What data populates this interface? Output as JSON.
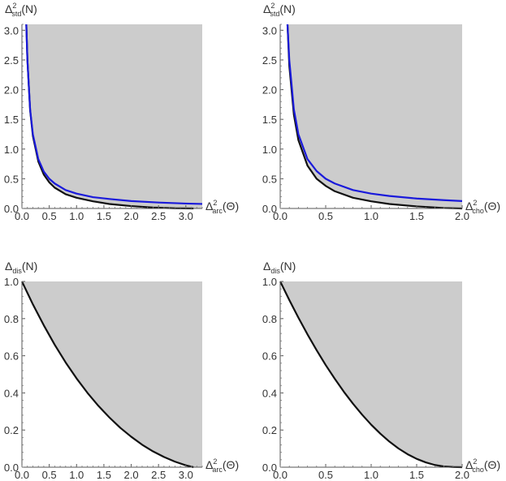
{
  "chart_data": [
    {
      "type": "area",
      "ylabel": {
        "symbol": "Δ",
        "sup": "2",
        "sub": "std",
        "suffix": "(N)"
      },
      "xlabel": {
        "symbol": "Δ",
        "sup": "2",
        "sub": "arc",
        "suffix": "(Θ)"
      },
      "xlim": [
        0,
        3.3
      ],
      "ylim": [
        0,
        3.1
      ],
      "xticks": [
        "0.0",
        "0.5",
        "1.0",
        "1.5",
        "2.0",
        "2.5",
        "3.0"
      ],
      "yticks": [
        "0.0",
        "0.5",
        "1.0",
        "1.5",
        "2.0",
        "2.5",
        "3.0"
      ],
      "region_color": "#cccccc",
      "series": [
        {
          "color": "#111111",
          "x": [
            0.08,
            0.1,
            0.15,
            0.2,
            0.3,
            0.4,
            0.5,
            0.6,
            0.8,
            1.0,
            1.3,
            1.6,
            2.0,
            2.4,
            2.8,
            3.14
          ],
          "y": [
            3.1,
            2.5,
            1.65,
            1.22,
            0.79,
            0.57,
            0.44,
            0.35,
            0.24,
            0.18,
            0.12,
            0.075,
            0.04,
            0.015,
            0.003,
            0.0
          ]
        },
        {
          "color": "#1a1adb",
          "x": [
            0.08,
            0.1,
            0.15,
            0.2,
            0.3,
            0.4,
            0.5,
            0.6,
            0.8,
            1.0,
            1.3,
            1.6,
            2.0,
            2.5,
            3.0,
            3.3
          ],
          "y": [
            3.1,
            2.5,
            1.67,
            1.25,
            0.83,
            0.62,
            0.5,
            0.42,
            0.31,
            0.25,
            0.19,
            0.16,
            0.125,
            0.1,
            0.083,
            0.076
          ]
        }
      ]
    },
    {
      "type": "area",
      "ylabel": {
        "symbol": "Δ",
        "sup": "2",
        "sub": "std",
        "suffix": "(N)"
      },
      "xlabel": {
        "symbol": "Δ",
        "sup": "2",
        "sub": "cho",
        "suffix": "(Θ)"
      },
      "xlim": [
        0,
        2.0
      ],
      "ylim": [
        0,
        3.1
      ],
      "xticks": [
        "0.0",
        "0.5",
        "1.0",
        "1.5",
        "2.0"
      ],
      "yticks": [
        "0.0",
        "0.5",
        "1.0",
        "1.5",
        "2.0",
        "2.5",
        "3.0"
      ],
      "region_color": "#cccccc",
      "series": [
        {
          "color": "#111111",
          "x": [
            0.08,
            0.1,
            0.15,
            0.2,
            0.3,
            0.4,
            0.5,
            0.6,
            0.8,
            1.0,
            1.2,
            1.5,
            1.8,
            2.0
          ],
          "y": [
            3.1,
            2.4,
            1.58,
            1.15,
            0.72,
            0.5,
            0.38,
            0.29,
            0.18,
            0.12,
            0.075,
            0.035,
            0.008,
            0.0
          ]
        },
        {
          "color": "#1a1adb",
          "x": [
            0.08,
            0.1,
            0.15,
            0.2,
            0.3,
            0.4,
            0.5,
            0.6,
            0.8,
            1.0,
            1.2,
            1.5,
            1.8,
            2.0
          ],
          "y": [
            3.1,
            2.5,
            1.67,
            1.25,
            0.83,
            0.63,
            0.5,
            0.42,
            0.31,
            0.25,
            0.21,
            0.167,
            0.14,
            0.125
          ]
        }
      ]
    },
    {
      "type": "area",
      "ylabel": {
        "symbol": "Δ",
        "sup": "",
        "sub": "dis",
        "suffix": "(N)"
      },
      "xlabel": {
        "symbol": "Δ",
        "sup": "2",
        "sub": "arc",
        "suffix": "(Θ)"
      },
      "xlim": [
        0,
        3.3
      ],
      "ylim": [
        0,
        1.0
      ],
      "xticks": [
        "0.0",
        "0.5",
        "1.0",
        "1.5",
        "2.0",
        "2.5",
        "3.0"
      ],
      "yticks": [
        "0.0",
        "0.2",
        "0.4",
        "0.6",
        "0.8",
        "1.0"
      ],
      "region_color": "#cccccc",
      "series": [
        {
          "color": "#111111",
          "x": [
            0.0,
            0.2,
            0.4,
            0.6,
            0.8,
            1.0,
            1.2,
            1.4,
            1.6,
            1.8,
            2.0,
            2.2,
            2.4,
            2.6,
            2.8,
            3.0,
            3.14
          ],
          "y": [
            1.0,
            0.877,
            0.764,
            0.659,
            0.564,
            0.478,
            0.4,
            0.33,
            0.268,
            0.212,
            0.164,
            0.121,
            0.085,
            0.055,
            0.03,
            0.01,
            0.0
          ]
        }
      ]
    },
    {
      "type": "area",
      "ylabel": {
        "symbol": "Δ",
        "sup": "",
        "sub": "dis",
        "suffix": "(N)"
      },
      "xlabel": {
        "symbol": "Δ",
        "sup": "2",
        "sub": "cho",
        "suffix": "(Θ)"
      },
      "xlim": [
        0,
        2.0
      ],
      "ylim": [
        0,
        1.0
      ],
      "xticks": [
        "0.0",
        "0.5",
        "1.0",
        "1.5",
        "2.0"
      ],
      "yticks": [
        "0.0",
        "0.2",
        "0.4",
        "0.6",
        "0.8",
        "1.0"
      ],
      "region_color": "#cccccc",
      "series": [
        {
          "color": "#111111",
          "x": [
            0.0,
            0.1,
            0.2,
            0.3,
            0.4,
            0.5,
            0.6,
            0.7,
            0.8,
            0.9,
            1.0,
            1.1,
            1.2,
            1.3,
            1.4,
            1.5,
            1.6,
            1.7,
            1.8,
            1.9,
            2.0
          ],
          "y": [
            1.0,
            0.9,
            0.805,
            0.715,
            0.63,
            0.55,
            0.476,
            0.406,
            0.342,
            0.283,
            0.229,
            0.181,
            0.138,
            0.101,
            0.07,
            0.045,
            0.026,
            0.012,
            0.004,
            0.001,
            0.0
          ]
        }
      ]
    }
  ]
}
